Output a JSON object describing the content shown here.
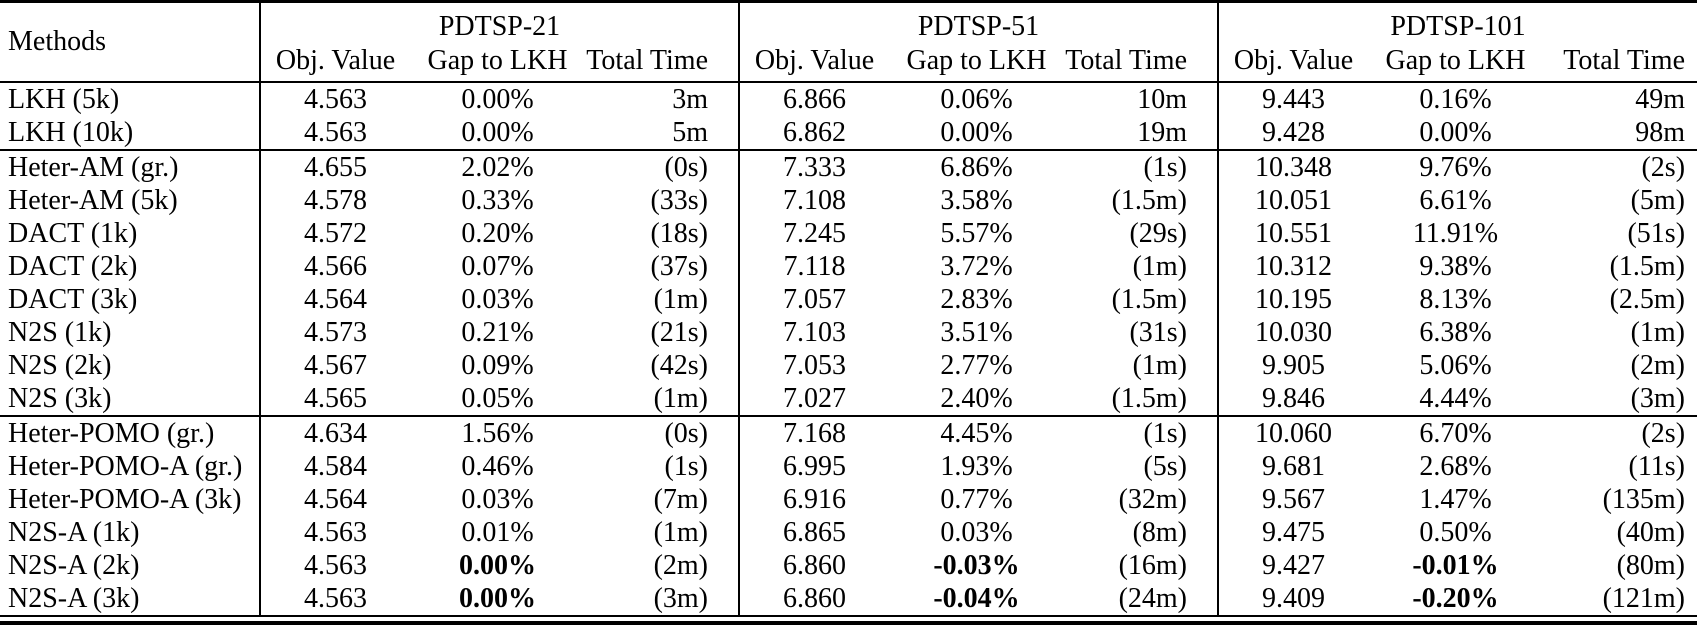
{
  "colors": {
    "text": "#000000",
    "background": "#ffffff",
    "rule": "#000000"
  },
  "table": {
    "methods_header": "Methods",
    "groups": [
      "PDTSP-21",
      "PDTSP-51",
      "PDTSP-101"
    ],
    "columns": [
      "Obj. Value",
      "Gap to LKH",
      "Total Time"
    ],
    "sections": [
      {
        "rows": [
          {
            "method": "LKH (5k)",
            "values": [
              [
                "4.563",
                "0.00%",
                "3m"
              ],
              [
                "6.866",
                "0.06%",
                "10m"
              ],
              [
                "9.443",
                "0.16%",
                "49m"
              ]
            ]
          },
          {
            "method": "LKH (10k)",
            "values": [
              [
                "4.563",
                "0.00%",
                "5m"
              ],
              [
                "6.862",
                "0.00%",
                "19m"
              ],
              [
                "9.428",
                "0.00%",
                "98m"
              ]
            ]
          }
        ]
      },
      {
        "rows": [
          {
            "method": "Heter-AM (gr.)",
            "values": [
              [
                "4.655",
                "2.02%",
                "(0s)"
              ],
              [
                "7.333",
                "6.86%",
                "(1s)"
              ],
              [
                "10.348",
                "9.76%",
                "(2s)"
              ]
            ]
          },
          {
            "method": "Heter-AM (5k)",
            "values": [
              [
                "4.578",
                "0.33%",
                "(33s)"
              ],
              [
                "7.108",
                "3.58%",
                "(1.5m)"
              ],
              [
                "10.051",
                "6.61%",
                "(5m)"
              ]
            ]
          },
          {
            "method": "DACT (1k)",
            "values": [
              [
                "4.572",
                "0.20%",
                "(18s)"
              ],
              [
                "7.245",
                "5.57%",
                "(29s)"
              ],
              [
                "10.551",
                "11.91%",
                "(51s)"
              ]
            ]
          },
          {
            "method": "DACT (2k)",
            "values": [
              [
                "4.566",
                "0.07%",
                "(37s)"
              ],
              [
                "7.118",
                "3.72%",
                "(1m)"
              ],
              [
                "10.312",
                "9.38%",
                "(1.5m)"
              ]
            ]
          },
          {
            "method": "DACT (3k)",
            "values": [
              [
                "4.564",
                "0.03%",
                "(1m)"
              ],
              [
                "7.057",
                "2.83%",
                "(1.5m)"
              ],
              [
                "10.195",
                "8.13%",
                "(2.5m)"
              ]
            ]
          },
          {
            "method": "N2S (1k)",
            "values": [
              [
                "4.573",
                "0.21%",
                "(21s)"
              ],
              [
                "7.103",
                "3.51%",
                "(31s)"
              ],
              [
                "10.030",
                "6.38%",
                "(1m)"
              ]
            ]
          },
          {
            "method": "N2S (2k)",
            "values": [
              [
                "4.567",
                "0.09%",
                "(42s)"
              ],
              [
                "7.053",
                "2.77%",
                "(1m)"
              ],
              [
                "9.905",
                "5.06%",
                "(2m)"
              ]
            ]
          },
          {
            "method": "N2S (3k)",
            "values": [
              [
                "4.565",
                "0.05%",
                "(1m)"
              ],
              [
                "7.027",
                "2.40%",
                "(1.5m)"
              ],
              [
                "9.846",
                "4.44%",
                "(3m)"
              ]
            ]
          }
        ]
      },
      {
        "rows": [
          {
            "method": "Heter-POMO (gr.)",
            "values": [
              [
                "4.634",
                "1.56%",
                "(0s)"
              ],
              [
                "7.168",
                "4.45%",
                "(1s)"
              ],
              [
                "10.060",
                "6.70%",
                "(2s)"
              ]
            ]
          },
          {
            "method": "Heter-POMO-A (gr.)",
            "values": [
              [
                "4.584",
                "0.46%",
                "(1s)"
              ],
              [
                "6.995",
                "1.93%",
                "(5s)"
              ],
              [
                "9.681",
                "2.68%",
                "(11s)"
              ]
            ]
          },
          {
            "method": "Heter-POMO-A (3k)",
            "values": [
              [
                "4.564",
                "0.03%",
                "(7m)"
              ],
              [
                "6.916",
                "0.77%",
                "(32m)"
              ],
              [
                "9.567",
                "1.47%",
                "(135m)"
              ]
            ]
          },
          {
            "method": "N2S-A (1k)",
            "values": [
              [
                "4.563",
                "0.01%",
                "(1m)"
              ],
              [
                "6.865",
                "0.03%",
                "(8m)"
              ],
              [
                "9.475",
                "0.50%",
                "(40m)"
              ]
            ]
          },
          {
            "method": "N2S-A (2k)",
            "values": [
              [
                "4.563",
                "0.00%",
                "(2m)"
              ],
              [
                "6.860",
                "-0.03%",
                "(16m)"
              ],
              [
                "9.427",
                "-0.01%",
                "(80m)"
              ]
            ],
            "bold_gaps": true
          },
          {
            "method": "N2S-A (3k)",
            "values": [
              [
                "4.563",
                "0.00%",
                "(3m)"
              ],
              [
                "6.860",
                "-0.04%",
                "(24m)"
              ],
              [
                "9.409",
                "-0.20%",
                "(121m)"
              ]
            ],
            "bold_gaps": true
          }
        ]
      }
    ]
  }
}
